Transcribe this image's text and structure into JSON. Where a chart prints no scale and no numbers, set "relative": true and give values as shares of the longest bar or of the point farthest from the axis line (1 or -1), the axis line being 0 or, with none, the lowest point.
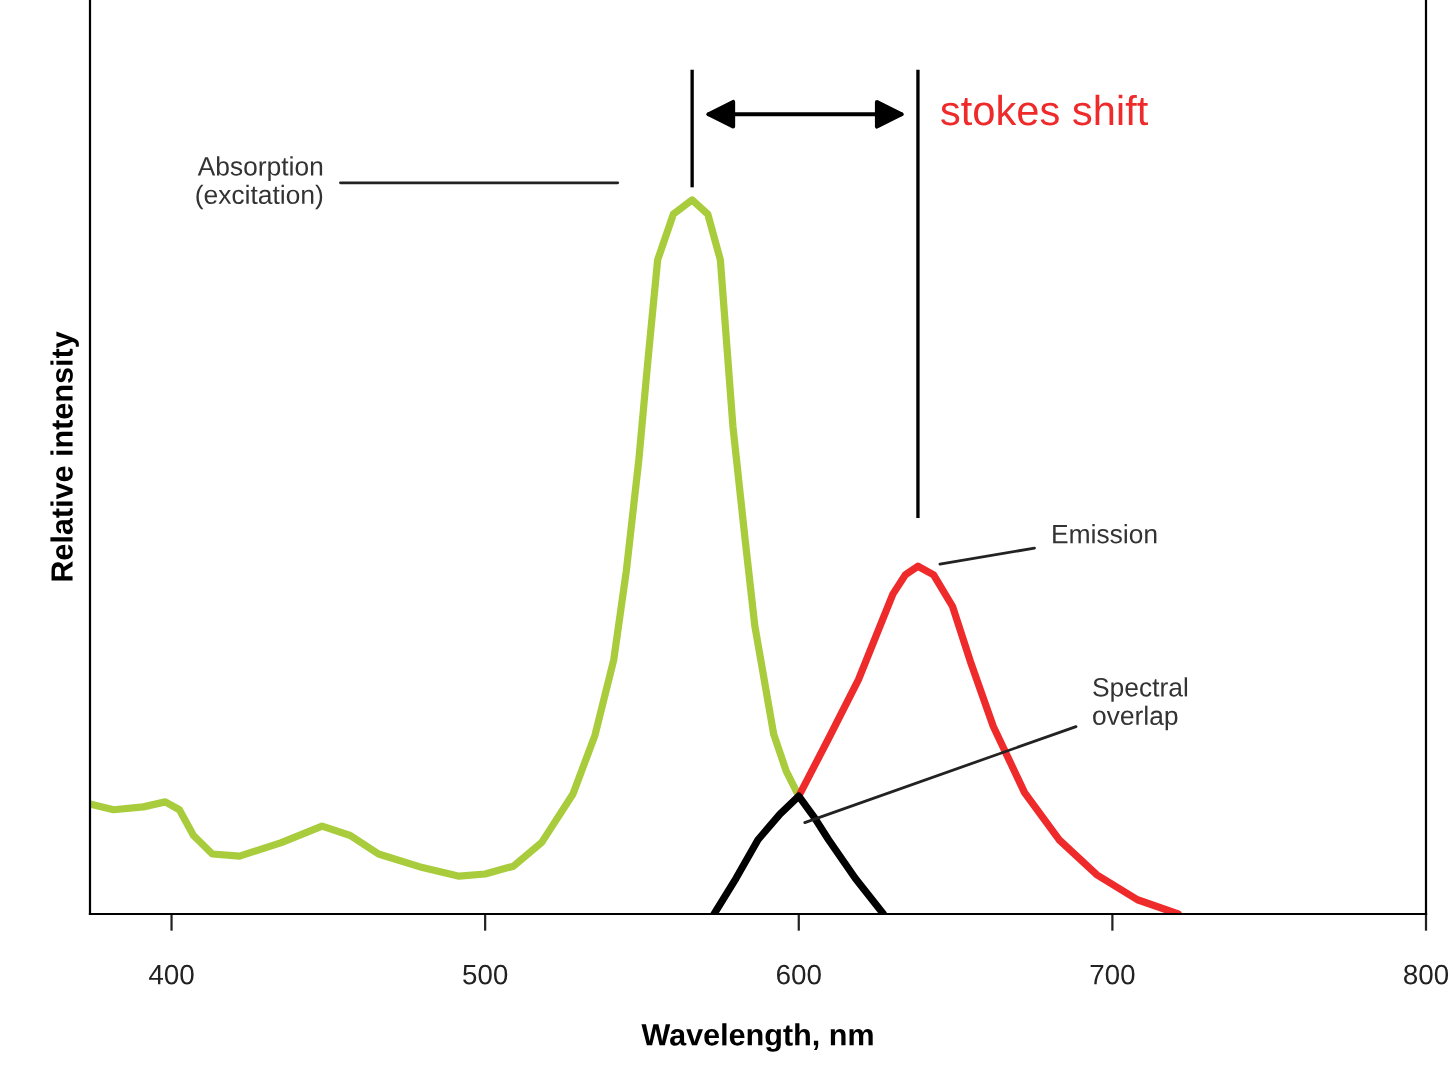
{
  "chart_data": {
    "type": "line",
    "relative": true,
    "xlabel": "Wavelength, nm",
    "ylabel": "Relative intensity",
    "xlim": [
      374,
      800
    ],
    "xticks": [
      400,
      500,
      600,
      700,
      800
    ],
    "grid": false,
    "marker": "none",
    "line_style": "solid",
    "series": [
      {
        "color": "#a8cc3c",
        "x": [
          374,
          381.5,
          391,
          398,
          402.5,
          407,
          413,
          421.7,
          435,
          448,
          457,
          466,
          480,
          491.7,
          500,
          509,
          518,
          528,
          535,
          541,
          545,
          549,
          552,
          555,
          560,
          566,
          571,
          575,
          579,
          583,
          586,
          592,
          596,
          600
        ],
        "values": [
          0.154,
          0.146,
          0.15,
          0.157,
          0.146,
          0.11,
          0.084,
          0.081,
          0.1,
          0.123,
          0.11,
          0.084,
          0.065,
          0.053,
          0.056,
          0.067,
          0.1,
          0.168,
          0.25,
          0.356,
          0.48,
          0.636,
          0.78,
          0.916,
          0.98,
          1.0,
          0.98,
          0.916,
          0.683,
          0.52,
          0.403,
          0.252,
          0.2,
          0.165
        ]
      },
      {
        "color": "#ee2a2a",
        "x": [
          600,
          610,
          619,
          630,
          634,
          638,
          643,
          649,
          655,
          662,
          672,
          683,
          695,
          708,
          721
        ],
        "values": [
          0.165,
          0.25,
          0.328,
          0.448,
          0.475,
          0.487,
          0.475,
          0.431,
          0.35,
          0.263,
          0.17,
          0.104,
          0.055,
          0.02,
          0
        ]
      },
      {
        "color": "#000000",
        "x": [
          573,
          580,
          587,
          594,
          600,
          605,
          609.5,
          618,
          627
        ],
        "values": [
          0,
          0.05,
          0.104,
          0.14,
          0.165,
          0.135,
          0.104,
          0.05,
          0
        ]
      }
    ],
    "annotations": [
      "Absorption\n(excitation)",
      {
        "text": "Emission",
        "x": 645,
        "y": 0.49
      },
      "Spectral\noverlap",
      "stokes shift"
    ]
  }
}
